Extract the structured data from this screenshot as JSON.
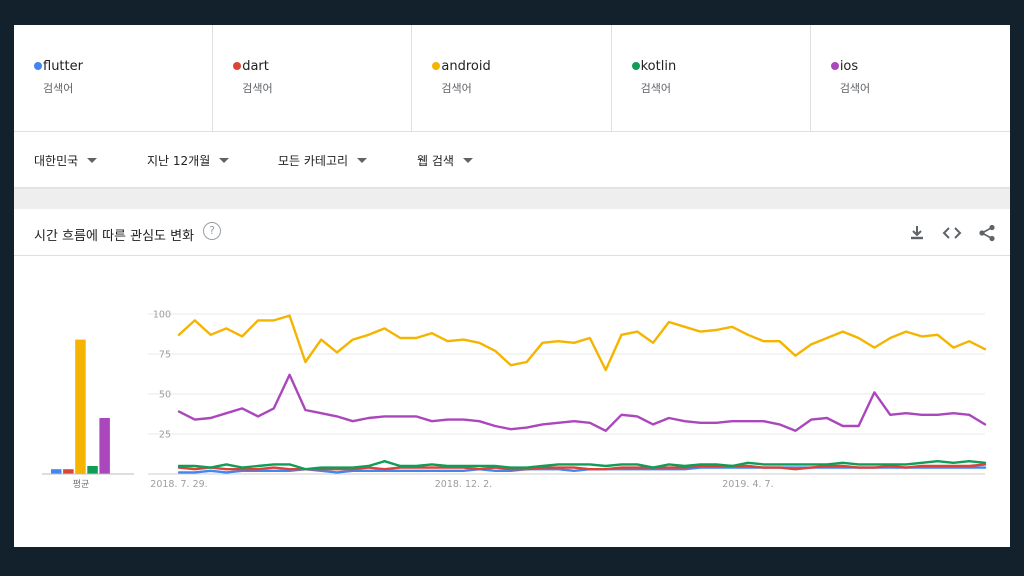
{
  "terms": [
    {
      "name": "flutter",
      "sub": "검색어",
      "color": "#4285f4"
    },
    {
      "name": "dart",
      "sub": "검색어",
      "color": "#db4437"
    },
    {
      "name": "android",
      "sub": "검색어",
      "color": "#f4b400"
    },
    {
      "name": "kotlin",
      "sub": "검색어",
      "color": "#0f9d58"
    },
    {
      "name": "ios",
      "sub": "검색어",
      "color": "#ab47bc"
    }
  ],
  "filters": {
    "region": "대한민국",
    "period": "지난 12개월",
    "category": "모든 카테고리",
    "search_type": "웹 검색"
  },
  "section": {
    "title": "시간 흐름에 따른 관심도 변화",
    "help_glyph": "?"
  },
  "chart_data": [
    {
      "type": "bar",
      "categories": [
        "flutter",
        "dart",
        "android",
        "kotlin",
        "ios"
      ],
      "values": [
        3,
        3,
        84,
        5,
        35
      ],
      "xlabel": "평균",
      "ylim": [
        0,
        100
      ]
    },
    {
      "type": "line",
      "yticks": [
        25,
        50,
        75,
        100
      ],
      "ylim": [
        0,
        100
      ],
      "xtick_labels": [
        "2018. 7. 29.",
        "2018. 12. 2.",
        "2019. 4. 7."
      ],
      "xtick_index": [
        0,
        18,
        36
      ],
      "series": [
        {
          "name": "flutter",
          "values": [
            1,
            1,
            2,
            1,
            2,
            2,
            2,
            2,
            3,
            2,
            1,
            2,
            2,
            2,
            2,
            2,
            2,
            2,
            2,
            3,
            2,
            2,
            3,
            3,
            3,
            2,
            3,
            3,
            3,
            3,
            3,
            3,
            3,
            4,
            4,
            4,
            4,
            4,
            4,
            4,
            4,
            4,
            4,
            4,
            4,
            4,
            4,
            4,
            4,
            4,
            4,
            4
          ]
        },
        {
          "name": "dart",
          "values": [
            4,
            3,
            4,
            3,
            3,
            3,
            4,
            3,
            3,
            3,
            3,
            3,
            4,
            3,
            4,
            4,
            4,
            4,
            4,
            3,
            4,
            3,
            3,
            4,
            4,
            4,
            3,
            3,
            4,
            4,
            4,
            4,
            4,
            5,
            5,
            5,
            5,
            4,
            4,
            3,
            4,
            5,
            5,
            4,
            4,
            5,
            4,
            5,
            5,
            5,
            5,
            6
          ]
        },
        {
          "name": "android",
          "values": [
            87,
            96,
            87,
            91,
            86,
            96,
            96,
            99,
            70,
            84,
            76,
            84,
            87,
            91,
            85,
            85,
            88,
            83,
            84,
            82,
            77,
            68,
            70,
            82,
            83,
            82,
            85,
            65,
            87,
            89,
            82,
            95,
            92,
            89,
            90,
            92,
            87,
            83,
            83,
            74,
            81,
            85,
            89,
            85,
            79,
            85,
            89,
            86,
            87,
            79,
            83,
            78
          ]
        },
        {
          "name": "kotlin",
          "values": [
            5,
            5,
            4,
            6,
            4,
            5,
            6,
            6,
            3,
            4,
            4,
            4,
            5,
            8,
            5,
            5,
            6,
            5,
            5,
            5,
            5,
            4,
            4,
            5,
            6,
            6,
            6,
            5,
            6,
            6,
            4,
            6,
            5,
            6,
            6,
            5,
            7,
            6,
            6,
            6,
            6,
            6,
            7,
            6,
            6,
            6,
            6,
            7,
            8,
            7,
            8,
            7
          ]
        },
        {
          "name": "ios",
          "values": [
            39,
            34,
            35,
            38,
            41,
            36,
            41,
            62,
            40,
            38,
            36,
            33,
            35,
            36,
            36,
            36,
            33,
            34,
            34,
            33,
            30,
            28,
            29,
            31,
            32,
            33,
            32,
            27,
            37,
            36,
            31,
            35,
            33,
            32,
            32,
            33,
            33,
            33,
            31,
            27,
            34,
            35,
            30,
            30,
            51,
            37,
            38,
            37,
            37,
            38,
            37,
            31
          ]
        }
      ]
    }
  ]
}
